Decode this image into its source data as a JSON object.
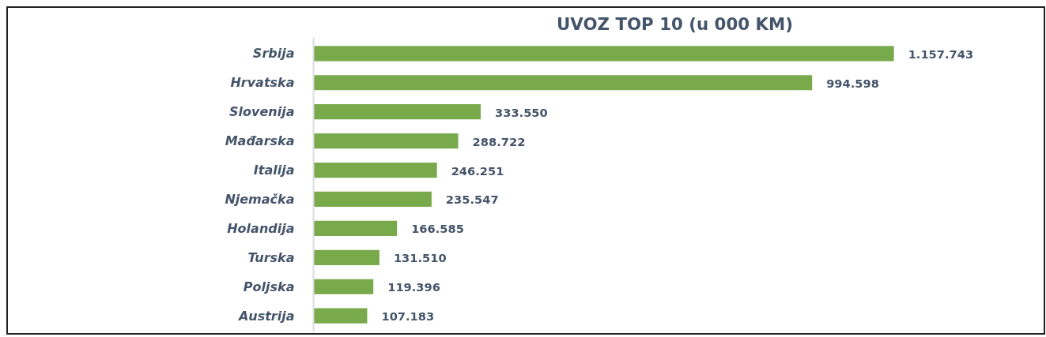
{
  "chart_data": {
    "type": "bar",
    "orientation": "horizontal",
    "title": "UVOZ TOP 10 (u 000 KM)",
    "categories": [
      "Srbija",
      "Hrvatska",
      "Slovenija",
      "Mađarska",
      "Italija",
      "Njemačka",
      "Holandija",
      "Turska",
      "Poljska",
      "Austrija"
    ],
    "values": [
      1157743,
      994598,
      333550,
      288722,
      246251,
      235547,
      166585,
      131510,
      119396,
      107183
    ],
    "value_labels": [
      "1.157.743",
      "994.598",
      "333.550",
      "288.722",
      "246.251",
      "235.547",
      "166.585",
      "131.510",
      "119.396",
      "107.183"
    ],
    "color": "#78a94a",
    "grid": false
  }
}
